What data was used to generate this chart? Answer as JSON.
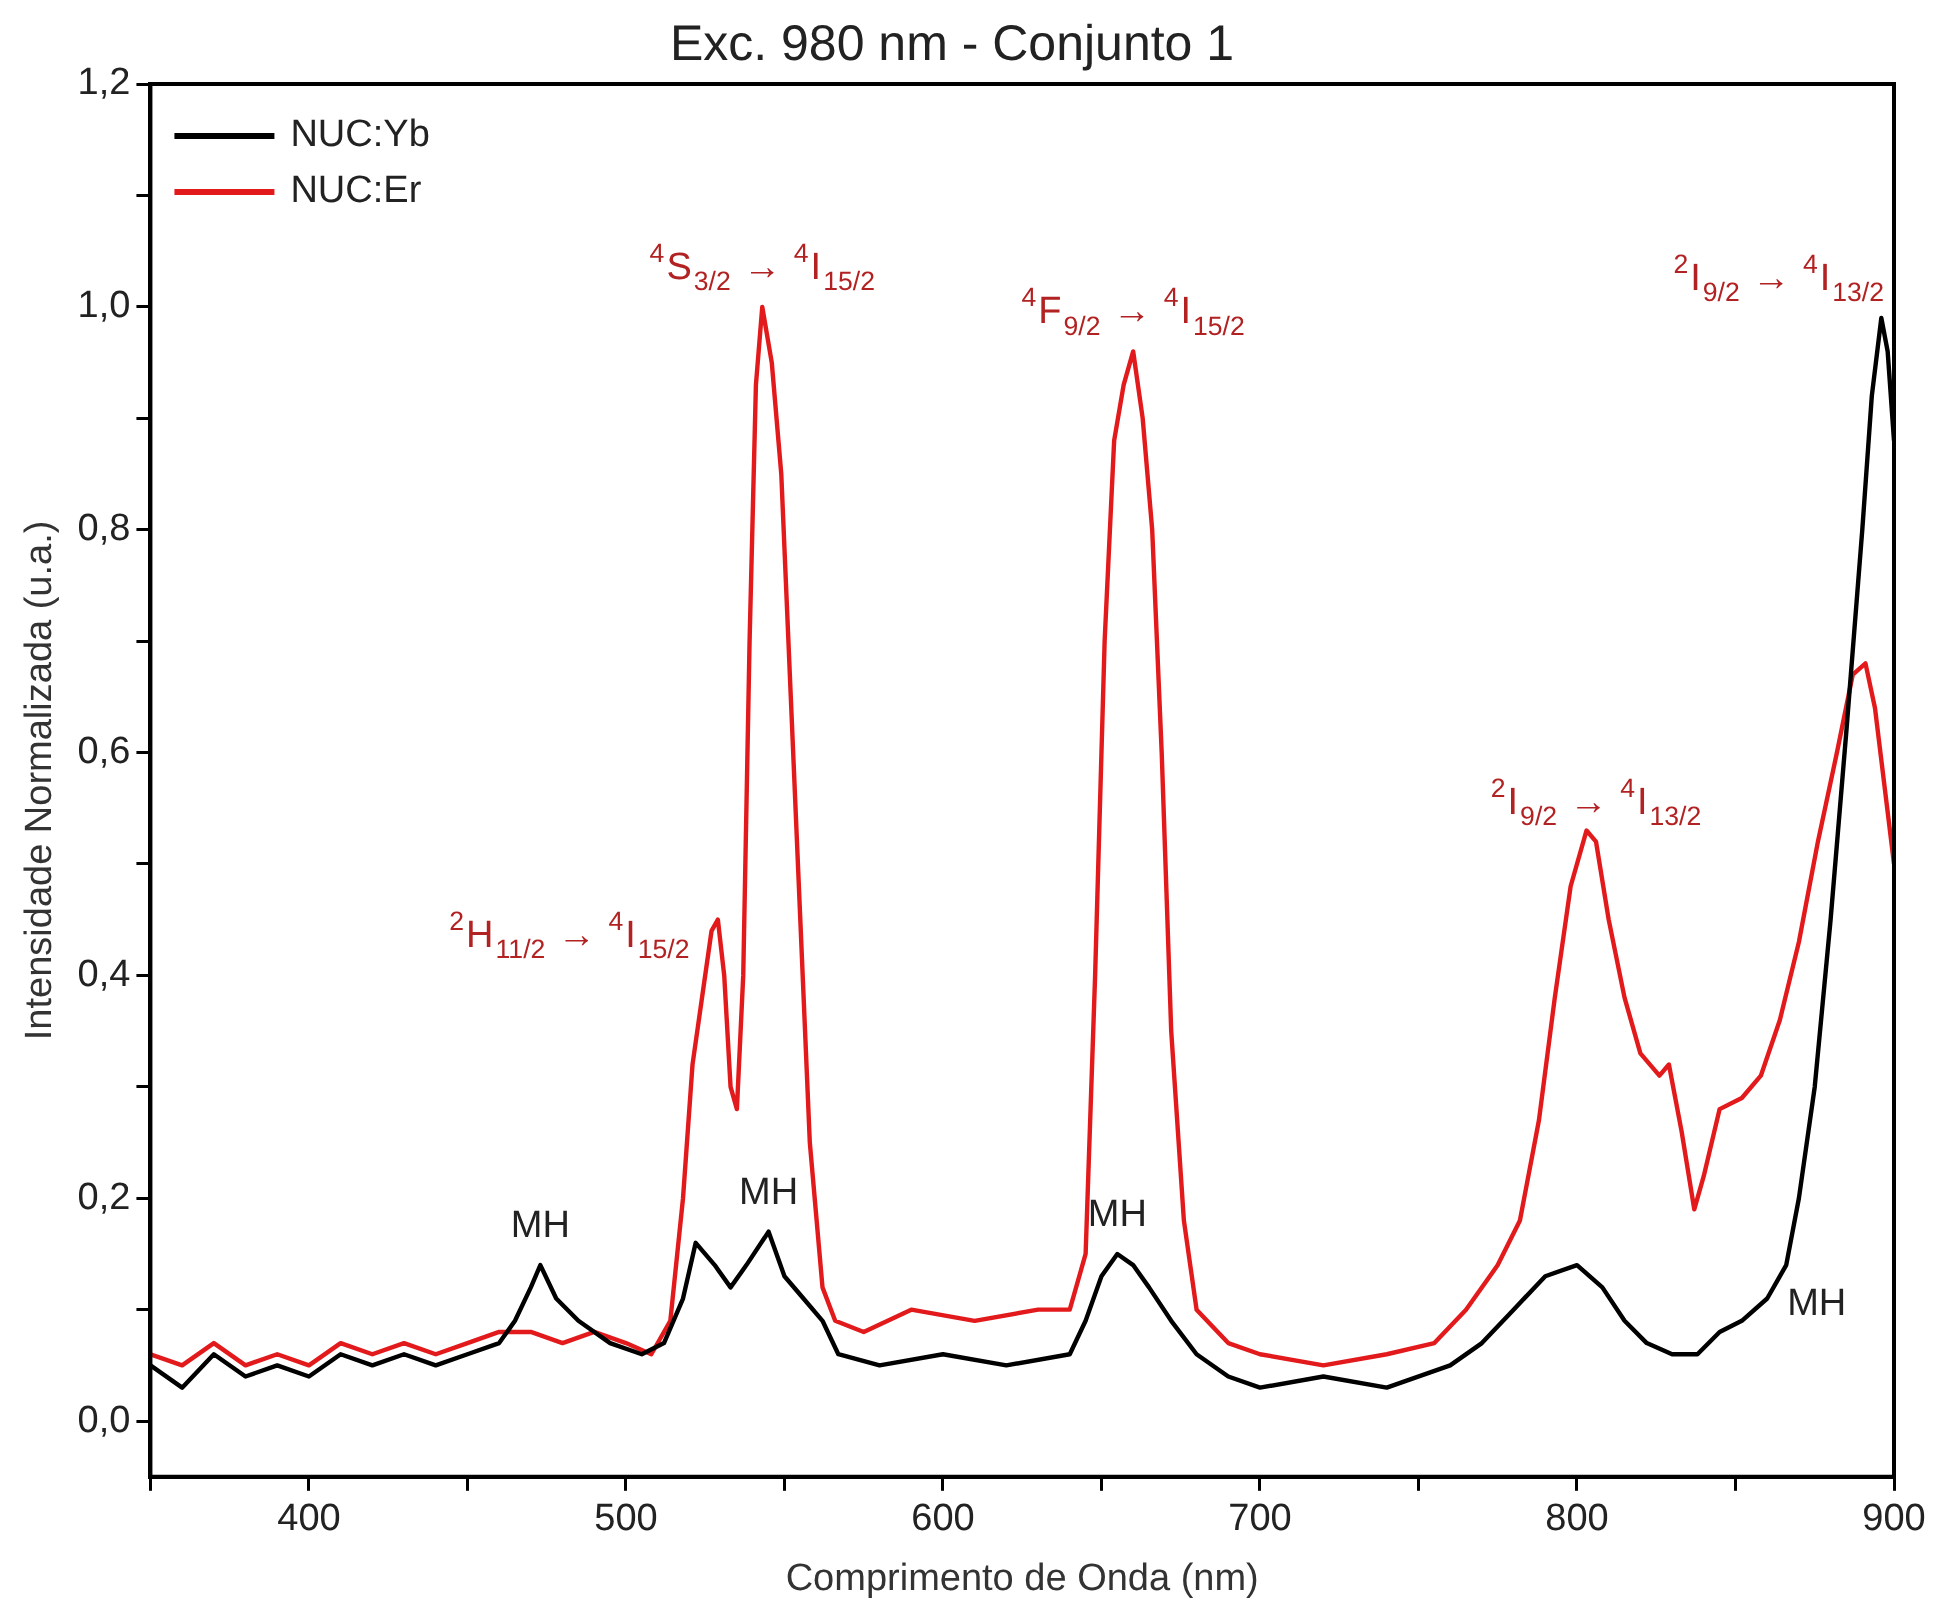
{
  "chart_data": {
    "type": "line",
    "title": "Exc. 980 nm - Conjunto 1",
    "xlabel": "Comprimento de Onda (nm)",
    "ylabel": "Intensidade Normalizada (u.a.)",
    "xlim": [
      350,
      900
    ],
    "xticks": [
      {
        "value": 350,
        "label": null
      },
      400,
      {
        "value": 450,
        "label": null
      },
      500,
      {
        "value": 550,
        "label": null
      },
      600,
      {
        "value": 650,
        "label": null
      },
      700,
      {
        "value": 750,
        "label": null
      },
      800,
      {
        "value": 850,
        "label": null
      },
      900
    ],
    "ylim": [
      -0.05,
      1.2
    ],
    "yticks": [
      {
        "value": 0,
        "label": "0,0"
      },
      {
        "value": 0.1,
        "label": null
      },
      {
        "value": 0.2,
        "label": "0,2"
      },
      {
        "value": 0.3,
        "label": null
      },
      {
        "value": 0.4,
        "label": "0,4"
      },
      {
        "value": 0.5,
        "label": null
      },
      {
        "value": 0.6,
        "label": "0,6"
      },
      {
        "value": 0.7,
        "label": null
      },
      {
        "value": 0.8,
        "label": "0,8"
      },
      {
        "value": 0.9,
        "label": null
      },
      {
        "value": 1.0,
        "label": "1,0"
      },
      {
        "value": 1.1,
        "label": null
      },
      {
        "value": 1.2,
        "label": "1,2"
      }
    ],
    "legend": "top left",
    "marker": "none",
    "line_style": "solid",
    "series": [
      {
        "name": "NUC:Yb",
        "color": "#000000",
        "x": [
          350,
          360,
          370,
          380,
          390,
          400,
          410,
          420,
          430,
          440,
          450,
          460,
          465,
          470,
          473,
          478,
          485,
          495,
          505,
          512,
          518,
          522,
          528,
          533,
          538,
          545,
          550,
          556,
          562,
          567,
          580,
          600,
          620,
          640,
          645,
          650,
          655,
          660,
          665,
          672,
          680,
          690,
          700,
          720,
          740,
          760,
          770,
          780,
          790,
          800,
          808,
          815,
          822,
          830,
          838,
          845,
          852,
          860,
          866,
          870,
          875,
          880,
          885,
          890,
          893,
          896,
          898,
          900
        ],
        "values": [
          0.05,
          0.03,
          0.06,
          0.04,
          0.05,
          0.04,
          0.06,
          0.05,
          0.06,
          0.05,
          0.06,
          0.07,
          0.09,
          0.12,
          0.14,
          0.11,
          0.09,
          0.07,
          0.06,
          0.07,
          0.11,
          0.16,
          0.14,
          0.12,
          0.14,
          0.17,
          0.13,
          0.11,
          0.09,
          0.06,
          0.05,
          0.06,
          0.05,
          0.06,
          0.09,
          0.13,
          0.15,
          0.14,
          0.12,
          0.09,
          0.06,
          0.04,
          0.03,
          0.04,
          0.03,
          0.05,
          0.07,
          0.1,
          0.13,
          0.14,
          0.12,
          0.09,
          0.07,
          0.06,
          0.06,
          0.08,
          0.09,
          0.11,
          0.14,
          0.2,
          0.3,
          0.45,
          0.62,
          0.8,
          0.92,
          0.99,
          0.96,
          0.88
        ]
      },
      {
        "name": "NUC:Er",
        "color": "#e31a1c",
        "x": [
          350,
          360,
          370,
          380,
          390,
          400,
          410,
          420,
          430,
          440,
          450,
          460,
          470,
          480,
          490,
          500,
          508,
          514,
          518,
          521,
          524,
          527,
          529,
          531,
          533,
          535,
          537,
          539,
          541,
          543,
          546,
          549,
          552,
          555,
          558,
          562,
          566,
          575,
          590,
          610,
          630,
          640,
          645,
          648,
          651,
          654,
          657,
          660,
          663,
          666,
          669,
          672,
          676,
          680,
          690,
          700,
          720,
          740,
          755,
          765,
          775,
          782,
          788,
          793,
          798,
          803,
          806,
          810,
          815,
          820,
          826,
          829,
          833,
          837,
          840,
          845,
          852,
          858,
          864,
          870,
          876,
          882,
          887,
          891,
          894,
          897,
          900
        ],
        "values": [
          0.06,
          0.05,
          0.07,
          0.05,
          0.06,
          0.05,
          0.07,
          0.06,
          0.07,
          0.06,
          0.07,
          0.08,
          0.08,
          0.07,
          0.08,
          0.07,
          0.06,
          0.09,
          0.2,
          0.32,
          0.38,
          0.44,
          0.45,
          0.4,
          0.3,
          0.28,
          0.4,
          0.7,
          0.93,
          1.0,
          0.95,
          0.85,
          0.65,
          0.45,
          0.25,
          0.12,
          0.09,
          0.08,
          0.1,
          0.09,
          0.1,
          0.1,
          0.15,
          0.4,
          0.7,
          0.88,
          0.93,
          0.96,
          0.9,
          0.8,
          0.6,
          0.35,
          0.18,
          0.1,
          0.07,
          0.06,
          0.05,
          0.06,
          0.07,
          0.1,
          0.14,
          0.18,
          0.27,
          0.38,
          0.48,
          0.53,
          0.52,
          0.45,
          0.38,
          0.33,
          0.31,
          0.32,
          0.26,
          0.19,
          0.22,
          0.28,
          0.29,
          0.31,
          0.36,
          0.43,
          0.52,
          0.6,
          0.67,
          0.68,
          0.64,
          0.57,
          0.5
        ]
      }
    ],
    "annotations": [
      {
        "text": "$^{2}$H$_{11/2}$ → $^{4}$I$_{15/2}$",
        "x": 527,
        "y": 0.44
      },
      {
        "text": "$^{4}$S$_{3/2}$ → $^{4}$I$_{15/2}$",
        "x": 543,
        "y": 1.0
      },
      {
        "text": "$^{4}$F$_{9/2}$ → $^{4}$I$_{15/2}$",
        "x": 660,
        "y": 0.96
      },
      {
        "text": "$^{2}$I$_{9/2}$ → $^{4}$I$_{13/2}$",
        "x": 806,
        "y": 0.52
      },
      {
        "text": "$^{2}$I$_{9/2}$ → $^{4}$I$_{13/2}$",
        "x": 896,
        "y": 0.99
      },
      {
        "text": "MH",
        "x": 473,
        "y": 0.14
      },
      {
        "text": "MH",
        "x": 545,
        "y": 0.17
      },
      {
        "text": "MH",
        "x": 655,
        "y": 0.15
      },
      {
        "text": "MH",
        "x": 860,
        "y": 0.11
      }
    ]
  }
}
